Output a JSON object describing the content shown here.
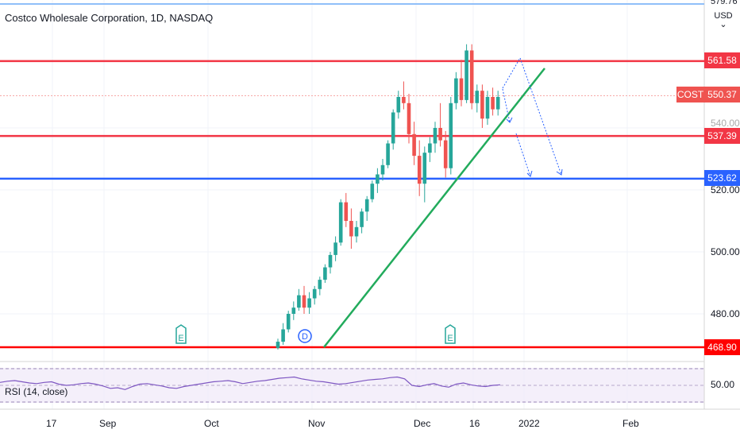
{
  "header": {
    "title": "Costco Wholesale Corporation, 1D, NASDAQ",
    "currency": "USD",
    "top_price": "579.76"
  },
  "symbol_tag": "COST",
  "price_levels": [
    {
      "value": "561.58",
      "color": "#f23645",
      "line": "#f23645"
    },
    {
      "value": "550.37",
      "color": "#ef5350",
      "line": "#f7a9a7"
    },
    {
      "value": "537.39",
      "color": "#f23645",
      "line": "#f23645"
    },
    {
      "value": "523.62",
      "color": "#2962ff",
      "line": "#2962ff"
    },
    {
      "value": "468.90",
      "color": "#ff0000",
      "line": "#ff0000"
    }
  ],
  "y_axis_ticks": [
    "540.00",
    "520.00",
    "500.00",
    "480.00"
  ],
  "rsi": {
    "label": "RSI (14, close)",
    "tick": "50.00"
  },
  "x_axis_ticks": [
    "17",
    "Sep",
    "Oct",
    "Nov",
    "Dec",
    "16",
    "2022",
    "Feb"
  ],
  "events": [
    {
      "label": "E",
      "date": "Sep 30"
    },
    {
      "label": "D",
      "date": "Nov 4"
    },
    {
      "label": "E",
      "date": "Dec 9"
    }
  ],
  "colors": {
    "up": "#26a69a",
    "down": "#ef5350",
    "trend": "#22ab5c",
    "projection": "#2962ff",
    "rsi": "#7e57c2"
  },
  "chart_data": {
    "type": "candlestick",
    "title": "Costco Wholesale Corporation, 1D, NASDAQ",
    "ylabel": "USD",
    "ylim": [
      455,
      580
    ],
    "ohlc": [
      [
        469,
        472,
        468.5,
        471
      ],
      [
        471,
        477,
        470,
        475
      ],
      [
        475,
        481,
        474,
        480
      ],
      [
        480,
        484,
        478,
        482
      ],
      [
        482,
        488,
        481,
        486
      ],
      [
        486,
        489,
        480,
        482
      ],
      [
        482,
        487,
        480,
        485
      ],
      [
        485,
        489,
        483,
        488
      ],
      [
        488,
        492,
        486,
        491
      ],
      [
        491,
        496,
        490,
        495
      ],
      [
        495,
        500,
        493,
        499
      ],
      [
        499,
        505,
        497,
        503
      ],
      [
        503,
        517,
        502,
        516
      ],
      [
        516,
        519,
        508,
        510
      ],
      [
        510,
        514,
        501,
        505
      ],
      [
        505,
        510,
        503,
        508
      ],
      [
        508,
        514,
        506,
        513
      ],
      [
        513,
        518,
        510,
        517
      ],
      [
        517,
        523,
        516,
        522
      ],
      [
        522,
        527,
        519,
        525
      ],
      [
        525,
        530,
        523,
        528
      ],
      [
        528,
        536,
        527,
        535
      ],
      [
        535,
        546,
        533,
        545
      ],
      [
        545,
        552,
        543,
        550
      ],
      [
        550,
        555,
        546,
        548
      ],
      [
        548,
        551,
        535,
        538
      ],
      [
        538,
        542,
        528,
        531
      ],
      [
        531,
        536,
        518,
        522
      ],
      [
        522,
        534,
        516,
        532
      ],
      [
        532,
        537,
        529,
        535
      ],
      [
        535,
        542,
        532,
        540
      ],
      [
        540,
        548,
        534,
        536
      ],
      [
        536,
        539,
        524,
        527
      ],
      [
        527,
        550,
        525,
        548
      ],
      [
        548,
        558,
        546,
        556
      ],
      [
        556,
        562,
        547,
        549
      ],
      [
        549,
        567,
        548,
        565
      ],
      [
        565,
        567,
        546,
        548
      ],
      [
        548,
        554,
        545,
        552
      ],
      [
        552,
        554,
        540,
        543
      ],
      [
        543,
        552,
        541,
        550
      ],
      [
        550,
        553,
        544,
        546
      ],
      [
        546,
        552,
        544,
        550
      ]
    ],
    "horizontal_levels": [
      561.58,
      537.39,
      523.62,
      468.9
    ],
    "last_price": 550.37,
    "rsi_ylim": [
      30,
      80
    ],
    "rsi_values": [
      55,
      57,
      58,
      56,
      54,
      53,
      55,
      56,
      52,
      50,
      51,
      53,
      54,
      52,
      49,
      45,
      46,
      43,
      48,
      52,
      53,
      51,
      49,
      46,
      45,
      48,
      50,
      52,
      54,
      56,
      57,
      58,
      56,
      53,
      55,
      57,
      58,
      60,
      62,
      63,
      64,
      61,
      59,
      57,
      56,
      54,
      52,
      53,
      55,
      57,
      59,
      60,
      61,
      63,
      64,
      61,
      50,
      48,
      51,
      53,
      49,
      47,
      52,
      54,
      51,
      49,
      48,
      50,
      51
    ]
  }
}
